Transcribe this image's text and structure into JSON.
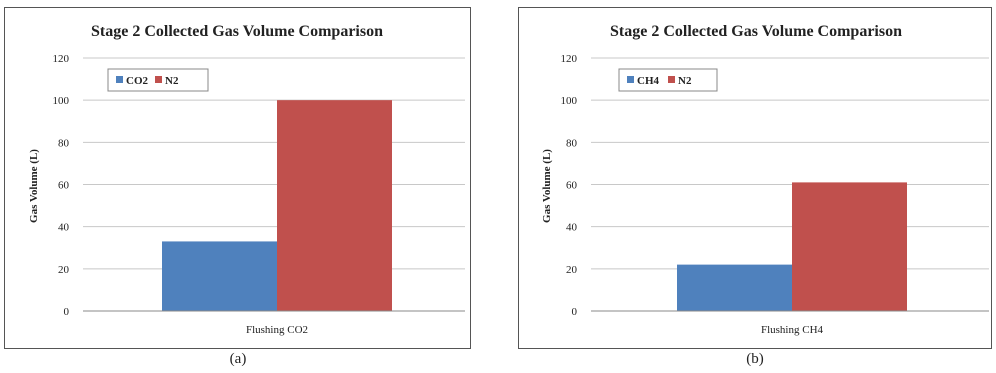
{
  "captions": {
    "a": "(a)",
    "b": "(b)"
  },
  "chart_data": [
    {
      "type": "bar",
      "title": "Stage 2 Collected Gas Volume Comparison",
      "xlabel": "",
      "ylabel": "Gas Volume (L)",
      "ylim": [
        0,
        120
      ],
      "yticks": [
        "0",
        "20",
        "40",
        "60",
        "80",
        "100",
        "120"
      ],
      "categories": [
        "Flushing CO2"
      ],
      "series": [
        {
          "name": "CO2",
          "values": [
            33
          ],
          "color": "#4f81bd"
        },
        {
          "name": "N2",
          "values": [
            100
          ],
          "color": "#c0504d"
        }
      ],
      "grid": true,
      "legend": "top-left"
    },
    {
      "type": "bar",
      "title": "Stage 2 Collected Gas Volume Comparison",
      "xlabel": "",
      "ylabel": "Gas Volume (L)",
      "ylim": [
        0,
        120
      ],
      "yticks": [
        "0",
        "20",
        "40",
        "60",
        "80",
        "100",
        "120"
      ],
      "categories": [
        "Flushing CH4"
      ],
      "series": [
        {
          "name": "CH4",
          "values": [
            22
          ],
          "color": "#4f81bd"
        },
        {
          "name": "N2",
          "values": [
            61
          ],
          "color": "#c0504d"
        }
      ],
      "grid": true,
      "legend": "top-left"
    }
  ]
}
